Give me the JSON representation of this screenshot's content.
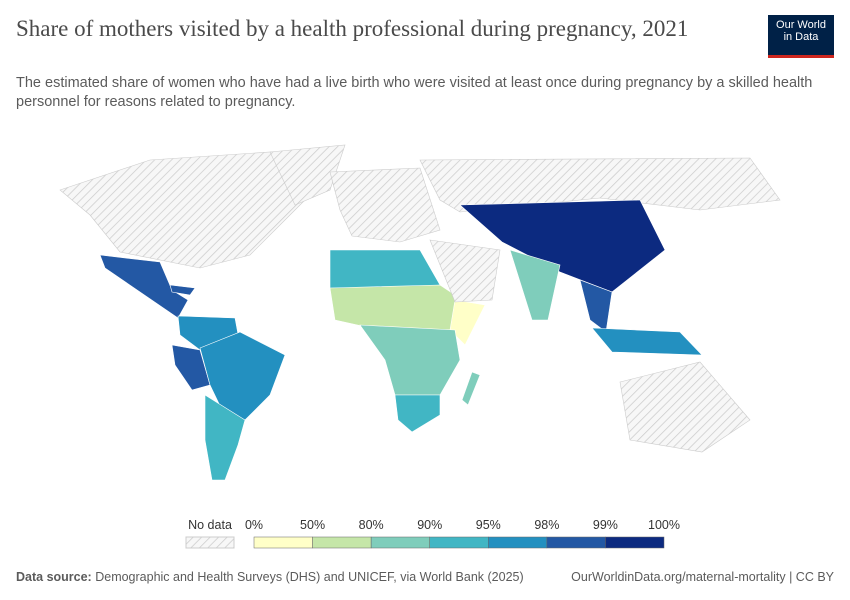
{
  "header": {
    "title": "Share of mothers visited by a health professional during pregnancy, 2021",
    "subtitle": "The estimated share of women who have had a live birth who were visited at least once during pregnancy by a skilled health personnel for reasons related to pregnancy.",
    "logo": {
      "line1": "Our World",
      "line2": "in Data"
    }
  },
  "legend": {
    "no_data": "No data",
    "ticks": [
      "0%",
      "50%",
      "80%",
      "90%",
      "95%",
      "98%",
      "99%",
      "100%"
    ],
    "colors": [
      "#ffffc8",
      "#c5e6a8",
      "#7fcdbb",
      "#41b6c4",
      "#2390c0",
      "#2358a4",
      "#0c2a80"
    ]
  },
  "footer": {
    "source_label": "Data source:",
    "source": "Demographic and Health Surveys (DHS) and UNICEF, via World Bank (2025)",
    "link": "OurWorldinData.org/maternal-mortality | CC BY"
  }
}
